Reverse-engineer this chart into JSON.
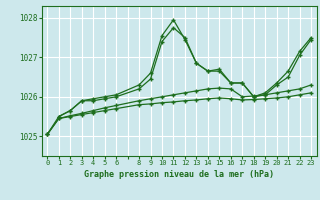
{
  "bg_color": "#cde8ec",
  "grid_color": "#ffffff",
  "line_color": "#1e6e1e",
  "xlabel": "Graphe pression niveau de la mer (hPa)",
  "xlabel_color": "#1e6e1e",
  "ylim": [
    1024.5,
    1028.3
  ],
  "yticks": [
    1025,
    1026,
    1027,
    1028
  ],
  "xtick_labels": [
    "0",
    "1",
    "2",
    "3",
    "4",
    "5",
    "6",
    "",
    "8",
    "9",
    "10",
    "11",
    "12",
    "13",
    "14",
    "15",
    "16",
    "17",
    "18",
    "19",
    "20",
    "21",
    "22",
    "23"
  ],
  "xtick_positions": [
    0,
    1,
    2,
    3,
    4,
    5,
    6,
    7,
    8,
    9,
    10,
    11,
    12,
    13,
    14,
    15,
    16,
    17,
    18,
    19,
    20,
    21,
    22,
    23
  ],
  "series": [
    {
      "x": [
        0,
        1,
        2,
        3,
        4,
        5,
        6,
        8,
        9,
        10,
        11,
        12,
        13,
        14,
        15,
        16,
        17,
        18,
        19,
        20,
        21,
        22,
        23
      ],
      "y": [
        1025.05,
        1025.45,
        1025.5,
        1025.55,
        1025.6,
        1025.65,
        1025.7,
        1025.8,
        1025.82,
        1025.85,
        1025.87,
        1025.9,
        1025.92,
        1025.95,
        1025.97,
        1025.95,
        1025.92,
        1025.93,
        1025.95,
        1025.97,
        1026.0,
        1026.05,
        1026.1
      ]
    },
    {
      "x": [
        0,
        1,
        2,
        3,
        4,
        5,
        6,
        8,
        9,
        10,
        11,
        12,
        13,
        14,
        15,
        16,
        17,
        18,
        19,
        20,
        21,
        22,
        23
      ],
      "y": [
        1025.05,
        1025.45,
        1025.52,
        1025.58,
        1025.65,
        1025.72,
        1025.78,
        1025.9,
        1025.95,
        1026.0,
        1026.05,
        1026.1,
        1026.15,
        1026.2,
        1026.22,
        1026.2,
        1026.0,
        1026.02,
        1026.05,
        1026.1,
        1026.15,
        1026.2,
        1026.3
      ]
    },
    {
      "x": [
        0,
        1,
        2,
        3,
        4,
        5,
        6,
        8,
        9,
        10,
        11,
        12,
        13,
        14,
        15,
        16,
        17,
        18,
        19,
        20,
        21,
        22,
        23
      ],
      "y": [
        1025.05,
        1025.5,
        1025.65,
        1025.9,
        1025.9,
        1025.95,
        1026.0,
        1026.2,
        1026.45,
        1027.4,
        1027.75,
        1027.5,
        1026.85,
        1026.65,
        1026.7,
        1026.35,
        1026.35,
        1026.0,
        1026.05,
        1026.3,
        1026.5,
        1027.05,
        1027.45
      ]
    },
    {
      "x": [
        1,
        2,
        3,
        4,
        5,
        6,
        8,
        9,
        10,
        11,
        12,
        13,
        14,
        15,
        16,
        17,
        18,
        19,
        20,
        21,
        22,
        23
      ],
      "y": [
        1025.5,
        1025.65,
        1025.9,
        1025.95,
        1026.0,
        1026.05,
        1026.3,
        1026.6,
        1027.55,
        1027.95,
        1027.45,
        1026.85,
        1026.65,
        1026.65,
        1026.35,
        1026.35,
        1026.0,
        1026.1,
        1026.35,
        1026.65,
        1027.15,
        1027.5
      ]
    }
  ]
}
